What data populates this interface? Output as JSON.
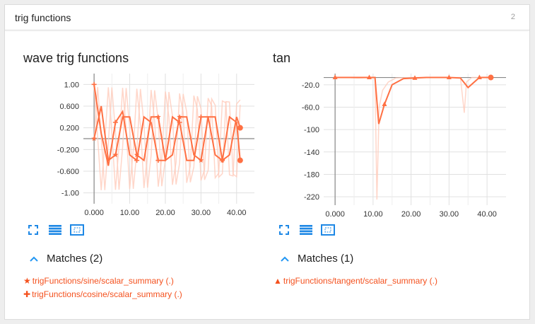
{
  "panel": {
    "title": "trig functions",
    "count": "2"
  },
  "accent_color": "#ff7043",
  "ghost_color": "#ffccbc",
  "icon_color": "#1e88e5",
  "icons": [
    "fullscreen-icon",
    "list-icon",
    "fit-domain-icon"
  ],
  "cards": [
    {
      "title": "wave trig functions",
      "matches_label": "Matches (2)",
      "match_items": [
        {
          "symbol": "★",
          "label": "trigFunctions/sine/scalar_summary (.)"
        },
        {
          "symbol": "✚",
          "label": "trigFunctions/cosine/scalar_summary (.)"
        }
      ]
    },
    {
      "title": "tan",
      "matches_label": "Matches (1)",
      "match_items": [
        {
          "symbol": "▲",
          "label": "trigFunctions/tangent/scalar_summary (.)"
        }
      ]
    }
  ],
  "chart_data": [
    {
      "type": "line",
      "title": "wave trig functions",
      "xlim": [
        -3,
        45
      ],
      "ylim": [
        -1.2,
        1.2
      ],
      "x_ticks": [
        0,
        10,
        20,
        30,
        40
      ],
      "x_tick_labels": [
        "0.000",
        "10.00",
        "20.00",
        "30.00",
        "40.00"
      ],
      "y_ticks": [
        1.0,
        0.6,
        0.2,
        -0.2,
        -0.6,
        -1.0
      ],
      "y_tick_labels": [
        "1.00",
        "0.600",
        "0.200",
        "-0.200",
        "-0.600",
        "-1.00"
      ],
      "grid": true,
      "series": [
        {
          "name": "trigFunctions/sine/scalar_summary (.)",
          "marker": "star",
          "x": [
            0,
            2,
            4,
            6,
            8,
            10,
            12,
            14,
            16,
            18,
            20,
            22,
            24,
            26,
            28,
            30,
            32,
            34,
            36,
            38,
            40,
            41
          ],
          "y": [
            0.0,
            0.6,
            -0.4,
            -0.3,
            0.4,
            0.4,
            -0.3,
            -0.4,
            0.4,
            0.4,
            -0.4,
            -0.3,
            0.4,
            0.4,
            -0.3,
            -0.4,
            0.4,
            0.4,
            -0.4,
            -0.3,
            0.4,
            0.2
          ]
        },
        {
          "name": "trigFunctions/cosine/scalar_summary (.)",
          "marker": "plus",
          "x": [
            0,
            2,
            4,
            6,
            8,
            10,
            12,
            14,
            16,
            18,
            20,
            22,
            24,
            26,
            28,
            30,
            32,
            34,
            36,
            38,
            40,
            41
          ],
          "y": [
            1.0,
            0.1,
            -0.5,
            0.3,
            0.5,
            -0.3,
            -0.4,
            0.4,
            0.3,
            -0.4,
            -0.4,
            0.4,
            0.3,
            -0.4,
            -0.4,
            0.4,
            0.4,
            -0.3,
            -0.4,
            0.4,
            0.3,
            -0.4
          ]
        }
      ]
    },
    {
      "type": "line",
      "title": "tan",
      "xlim": [
        -3,
        45
      ],
      "ylim": [
        -235,
        0
      ],
      "x_ticks": [
        0,
        10,
        20,
        30,
        40
      ],
      "x_tick_labels": [
        "0.000",
        "10.00",
        "20.00",
        "30.00",
        "40.00"
      ],
      "y_ticks": [
        -20,
        -60,
        -100,
        -140,
        -180,
        -220
      ],
      "y_tick_labels": [
        "-20.0",
        "-60.0",
        "-100",
        "-140",
        "-180",
        "-220"
      ],
      "grid": true,
      "series": [
        {
          "name": "trigFunctions/tangent/scalar_summary (.)",
          "marker": "triangle",
          "x": [
            0,
            3,
            6,
            9,
            10.5,
            11.5,
            13,
            15,
            18,
            21,
            24,
            27,
            30,
            33,
            35,
            38,
            41
          ],
          "y": [
            -7,
            -7,
            -7,
            -7,
            -7,
            -90,
            -55,
            -20,
            -9,
            -8,
            -7,
            -7,
            -7,
            -8,
            -25,
            -7,
            -7
          ]
        }
      ]
    }
  ]
}
